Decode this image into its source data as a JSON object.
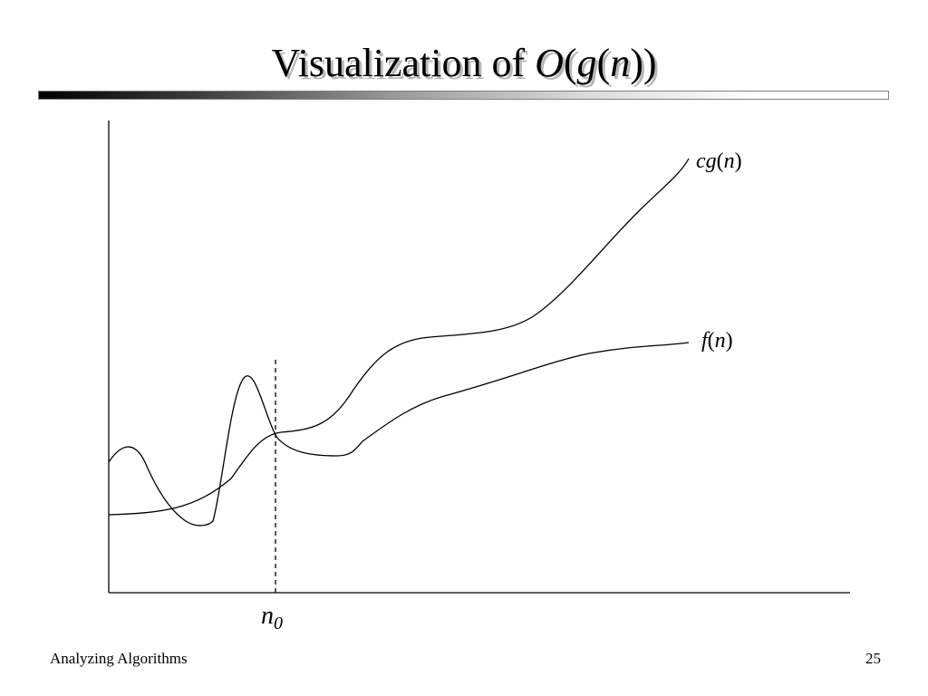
{
  "slide": {
    "title_prefix": "Visualization of ",
    "title_O": "O",
    "title_open1": "(",
    "title_g": "g",
    "title_open2": "(",
    "title_n": "n",
    "title_close": "))",
    "footer_left": "Analyzing Algorithms",
    "page_number": "25"
  },
  "diagram": {
    "curves": [
      {
        "id": "cg",
        "label_prefix": "c",
        "label_fn": "g",
        "label_arg": "n",
        "color": "#000000"
      },
      {
        "id": "f",
        "label_fn": "f",
        "label_arg": "n",
        "color": "#000000"
      }
    ],
    "threshold": {
      "base": "n",
      "subscript": "0",
      "style": "dashed"
    }
  }
}
